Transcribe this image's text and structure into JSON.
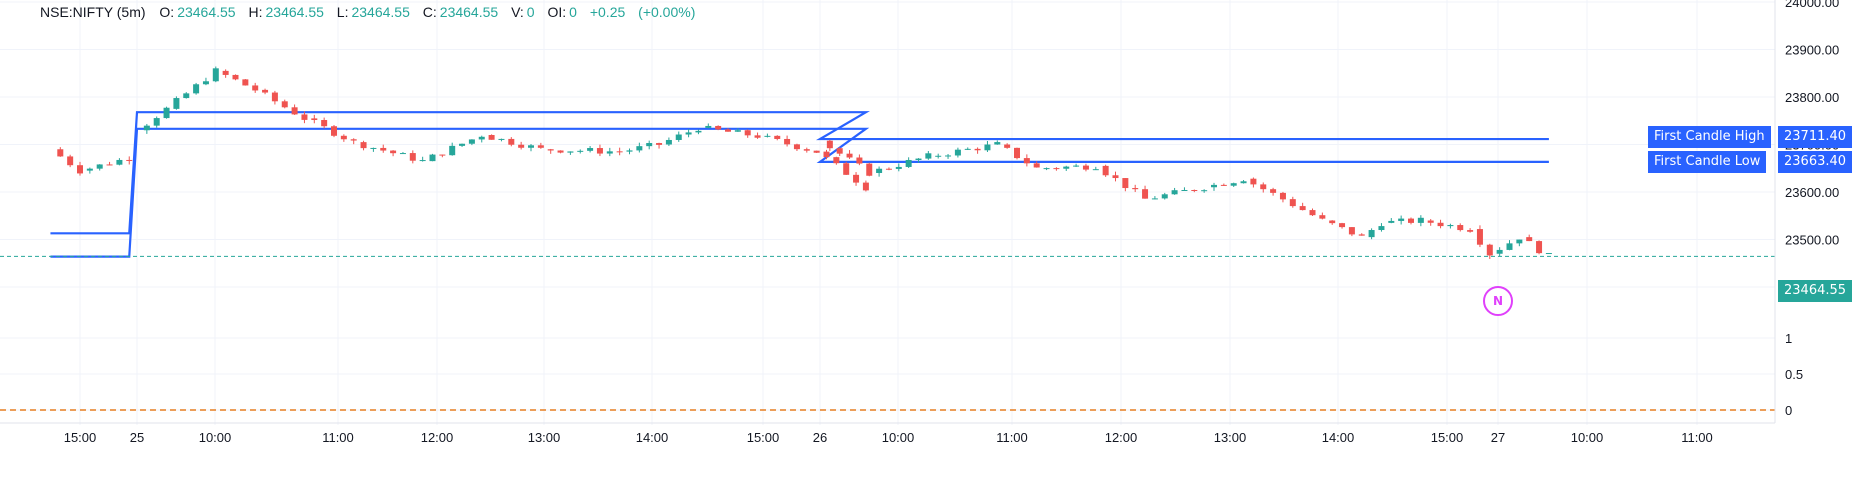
{
  "legend": {
    "symbol": "NSE:NIFTY (5m)",
    "o_label": "O:",
    "o": "23464.55",
    "h_label": "H:",
    "h": "23464.55",
    "l_label": "L:",
    "l": "23464.55",
    "c_label": "C:",
    "c": "23464.55",
    "v_label": "V:",
    "v": "0",
    "oi_label": "OI:",
    "oi": "0",
    "change": "+0.25",
    "change_pct": "(+0.00%)"
  },
  "colors": {
    "up": "#26a69a",
    "down": "#ef5350",
    "level_line": "#2962ff",
    "last_price": "#26a69a",
    "zero_line": "#e67e22",
    "marker": "#e040fb"
  },
  "tags": {
    "first_high_label": "First Candle High",
    "first_high_value": "23711.40",
    "first_low_label": "First Candle Low",
    "first_low_value": "23663.40",
    "last_value": "23464.55"
  },
  "marker_label": "N",
  "chart_data": {
    "type": "line",
    "title": "",
    "price_axis": {
      "range": [
        23370,
        24000
      ],
      "ticks": [
        "24000.00",
        "23900.00",
        "23800.00",
        "23700.00",
        "23600.00",
        "23500.00",
        "23400.00"
      ]
    },
    "indicator_axis": {
      "range": [
        -0.15,
        1.2
      ],
      "ticks": [
        "1",
        "0.5",
        "0"
      ]
    },
    "x_ticks": [
      "15:00",
      "25",
      "10:00",
      "11:00",
      "12:00",
      "13:00",
      "14:00",
      "15:00",
      "26",
      "10:00",
      "11:00",
      "12:00",
      "13:00",
      "14:00",
      "15:00",
      "27",
      "10:00",
      "11:00"
    ],
    "legend_placement": "top-left",
    "grid": true,
    "series": [
      {
        "name": "First Candle High",
        "points": [
          {
            "t": "24 14:45",
            "y": 23513
          },
          {
            "t": "24 15:25",
            "y": 23513
          },
          {
            "t": "25 09:15",
            "y": 23768
          },
          {
            "t": "25 15:25",
            "y": 23768
          },
          {
            "t": "26 09:15",
            "y": 23711.4
          },
          {
            "t": "26 15:25",
            "y": 23711.4
          }
        ]
      },
      {
        "name": "First Candle Low",
        "points": [
          {
            "t": "24 14:45",
            "y": 23464
          },
          {
            "t": "24 15:25",
            "y": 23464
          },
          {
            "t": "25 09:15",
            "y": 23733
          },
          {
            "t": "25 15:25",
            "y": 23733
          },
          {
            "t": "26 09:15",
            "y": 23663.4
          },
          {
            "t": "26 15:25",
            "y": 23663.4
          }
        ]
      }
    ],
    "price_path": [
      {
        "t": "24 14:45",
        "y": 23690
      },
      {
        "t": "24 15:00",
        "y": 23645
      },
      {
        "t": "24 15:25",
        "y": 23672
      },
      {
        "t": "25 09:15",
        "y": 23730
      },
      {
        "t": "25 09:30",
        "y": 23775
      },
      {
        "t": "25 09:55",
        "y": 23855
      },
      {
        "t": "25 10:15",
        "y": 23815
      },
      {
        "t": "25 10:40",
        "y": 23755
      },
      {
        "t": "25 11:05",
        "y": 23705
      },
      {
        "t": "25 11:40",
        "y": 23665
      },
      {
        "t": "25 12:10",
        "y": 23720
      },
      {
        "t": "25 12:40",
        "y": 23690
      },
      {
        "t": "25 13:20",
        "y": 23685
      },
      {
        "t": "25 13:40",
        "y": 23700
      },
      {
        "t": "25 14:00",
        "y": 23735
      },
      {
        "t": "25 14:30",
        "y": 23718
      },
      {
        "t": "25 15:00",
        "y": 23685
      },
      {
        "t": "25 15:25",
        "y": 23610
      },
      {
        "t": "26 09:15",
        "y": 23708
      },
      {
        "t": "26 09:40",
        "y": 23640
      },
      {
        "t": "26 10:10",
        "y": 23675
      },
      {
        "t": "26 10:45",
        "y": 23700
      },
      {
        "t": "26 11:05",
        "y": 23650
      },
      {
        "t": "26 11:35",
        "y": 23655
      },
      {
        "t": "26 12:00",
        "y": 23585
      },
      {
        "t": "26 12:30",
        "y": 23610
      },
      {
        "t": "26 12:50",
        "y": 23628
      },
      {
        "t": "26 13:10",
        "y": 23585
      },
      {
        "t": "26 13:30",
        "y": 23540
      },
      {
        "t": "26 13:50",
        "y": 23505
      },
      {
        "t": "26 14:00",
        "y": 23535
      },
      {
        "t": "26 14:20",
        "y": 23540
      },
      {
        "t": "26 14:45",
        "y": 23522
      },
      {
        "t": "26 14:55",
        "y": 23470
      },
      {
        "t": "26 15:10",
        "y": 23505
      },
      {
        "t": "26 15:25",
        "y": 23464.55
      }
    ],
    "last_price": 23464.55,
    "zero_level": 0
  }
}
